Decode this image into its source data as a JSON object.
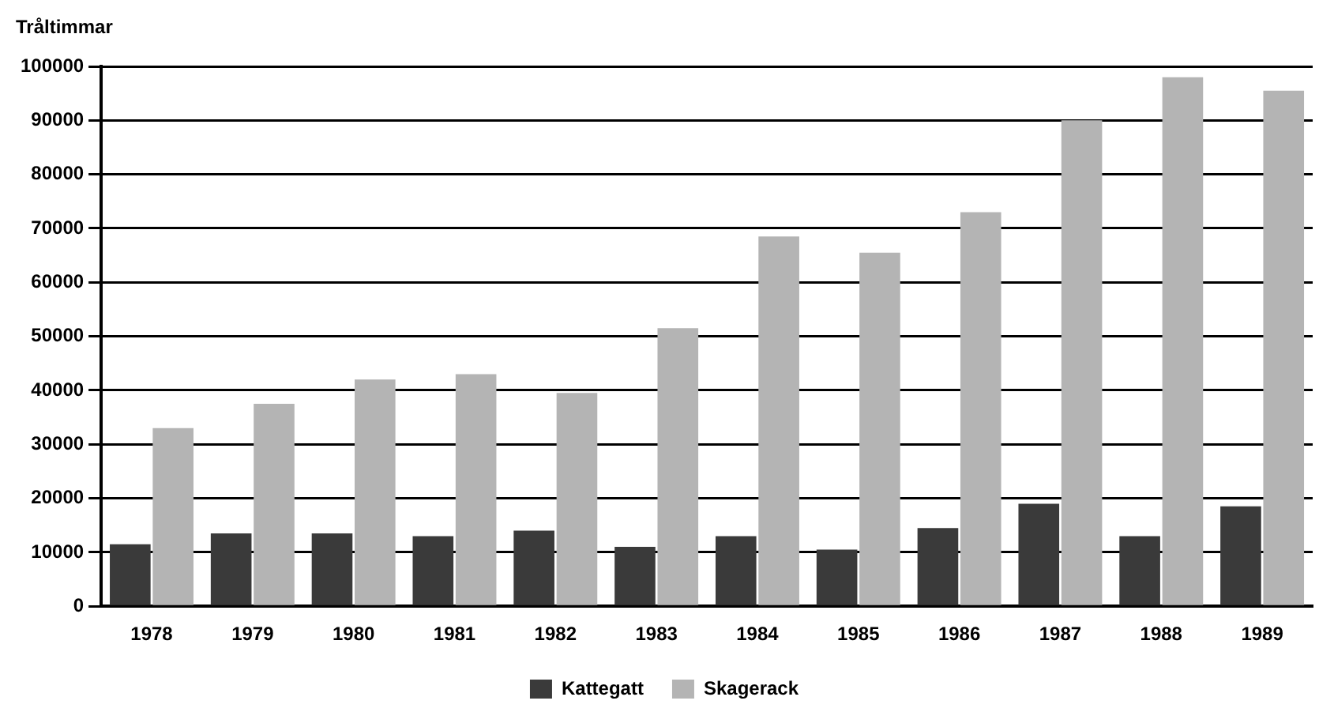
{
  "chart_data": {
    "type": "bar",
    "ylabel": "Tråltimmar",
    "categories": [
      "1978",
      "1979",
      "1980",
      "1981",
      "1982",
      "1983",
      "1984",
      "1985",
      "1986",
      "1987",
      "1988",
      "1989"
    ],
    "series": [
      {
        "name": "Kattegatt",
        "color": "#3a3a3a",
        "values": [
          11500,
          13500,
          13500,
          13000,
          14000,
          11000,
          13000,
          10500,
          14500,
          19000,
          13000,
          18500
        ]
      },
      {
        "name": "Skagerack",
        "color": "#b4b4b4",
        "values": [
          33000,
          37500,
          42000,
          43000,
          39500,
          51500,
          68500,
          65500,
          73000,
          90000,
          98000,
          95500
        ]
      }
    ],
    "ylim": [
      0,
      100000
    ],
    "yticks": [
      0,
      10000,
      20000,
      30000,
      40000,
      50000,
      60000,
      70000,
      80000,
      90000,
      100000
    ],
    "grid": "y",
    "legend": "bottom"
  }
}
